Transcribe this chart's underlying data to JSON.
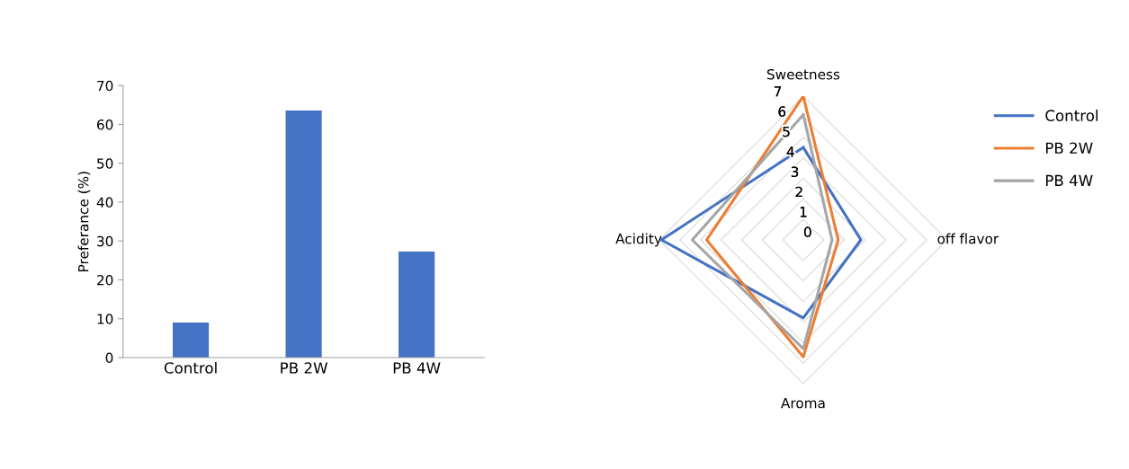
{
  "chart_data": [
    {
      "type": "bar",
      "ylabel": "Preferance (%)",
      "categories": [
        "Control",
        "PB 2W",
        "PB 4W"
      ],
      "values": [
        9,
        63.6,
        27.3
      ],
      "color": "#4472c4",
      "ylim": [
        0,
        70
      ],
      "yticks": [
        0,
        10,
        20,
        30,
        40,
        50,
        60,
        70
      ],
      "grid": false,
      "legend": false
    },
    {
      "type": "radar",
      "categories": [
        "Sweetness",
        "off flavor",
        "Aroma",
        "Acidity"
      ],
      "ylim": [
        0,
        7
      ],
      "yticks": [
        0,
        1,
        2,
        3,
        4,
        5,
        6,
        7
      ],
      "grid": true,
      "legend": "right",
      "marker": "none",
      "series": [
        {
          "name": "Control",
          "color": "#4472c4",
          "values": [
            4.5,
            2.8,
            3.8,
            6.9
          ]
        },
        {
          "name": "PB 2W",
          "color": "#ed7d31",
          "values": [
            7.0,
            1.7,
            5.7,
            4.7
          ]
        },
        {
          "name": "PB 4W",
          "color": "#a5a5a5",
          "values": [
            6.1,
            1.4,
            5.3,
            5.4
          ]
        }
      ]
    }
  ]
}
